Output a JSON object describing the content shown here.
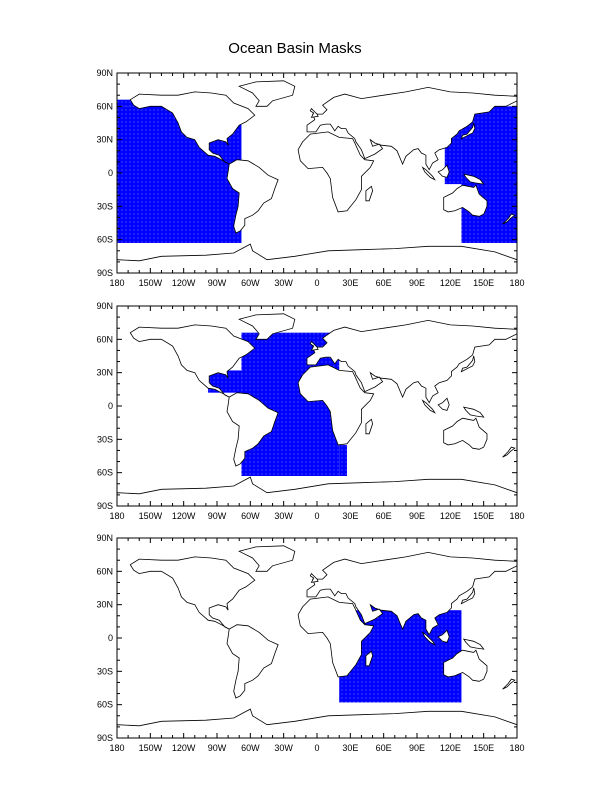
{
  "title": "Ocean Basin Masks",
  "colors": {
    "mask": "#0000ff",
    "land": "#ffffff",
    "coast": "#000000"
  },
  "lon_ticks": [
    "180",
    "150W",
    "120W",
    "90W",
    "60W",
    "30W",
    "0",
    "30E",
    "60E",
    "90E",
    "120E",
    "150E",
    "180"
  ],
  "lat_ticks": [
    "90N",
    "60N",
    "30N",
    "0",
    "30S",
    "60S",
    "90S"
  ],
  "panels": [
    {
      "name": "pacific-mask",
      "basin": "Pacific"
    },
    {
      "name": "atlantic-mask",
      "basin": "Atlantic"
    },
    {
      "name": "indian-mask",
      "basin": "Indian"
    }
  ]
}
